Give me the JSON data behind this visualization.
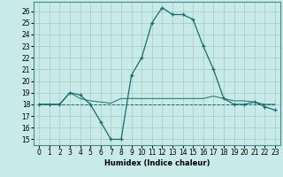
{
  "xlabel": "Humidex (Indice chaleur)",
  "bg_color": "#c8eae8",
  "grid_color": "#9fbfbf",
  "line_color": "#1a6b6b",
  "xlim": [
    -0.5,
    23.5
  ],
  "ylim": [
    14.5,
    26.8
  ],
  "yticks": [
    15,
    16,
    17,
    18,
    19,
    20,
    21,
    22,
    23,
    24,
    25,
    26
  ],
  "xticks": [
    0,
    1,
    2,
    3,
    4,
    5,
    6,
    7,
    8,
    9,
    10,
    11,
    12,
    13,
    14,
    15,
    16,
    17,
    18,
    19,
    20,
    21,
    22,
    23
  ],
  "line1_x": [
    0,
    1,
    2,
    3,
    4,
    5,
    6,
    7,
    8,
    9,
    10,
    11,
    12,
    13,
    14,
    15,
    16,
    17,
    18,
    19,
    20,
    21,
    22,
    23
  ],
  "line1_y": [
    18,
    18,
    18,
    19,
    18.8,
    18,
    16.5,
    15,
    15,
    20.5,
    22,
    25,
    26.3,
    25.7,
    25.7,
    25.3,
    23,
    21,
    18.5,
    18,
    18,
    18.2,
    17.8,
    17.5
  ],
  "line2_x": [
    0,
    1,
    2,
    3,
    4,
    5,
    6,
    7,
    8,
    9,
    10,
    11,
    12,
    13,
    14,
    15,
    16,
    17,
    18,
    19,
    20,
    21,
    22,
    23
  ],
  "line2_y": [
    18,
    18,
    18,
    18,
    18,
    18,
    18,
    18,
    18,
    18,
    18,
    18,
    18,
    18,
    18,
    18,
    18,
    18,
    18,
    18,
    18,
    18,
    18,
    18
  ],
  "line3_x": [
    0,
    1,
    2,
    3,
    4,
    5,
    6,
    7,
    8,
    9,
    10,
    11,
    12,
    13,
    14,
    15,
    16,
    17,
    18,
    19,
    20,
    21,
    22,
    23
  ],
  "line3_y": [
    18,
    18,
    18,
    19,
    18.5,
    18.3,
    18.2,
    18.1,
    18.5,
    18.5,
    18.5,
    18.5,
    18.5,
    18.5,
    18.5,
    18.5,
    18.5,
    18.7,
    18.5,
    18.3,
    18.3,
    18.2,
    18,
    18
  ],
  "xlabel_fontsize": 6,
  "tick_fontsize": 5.5
}
